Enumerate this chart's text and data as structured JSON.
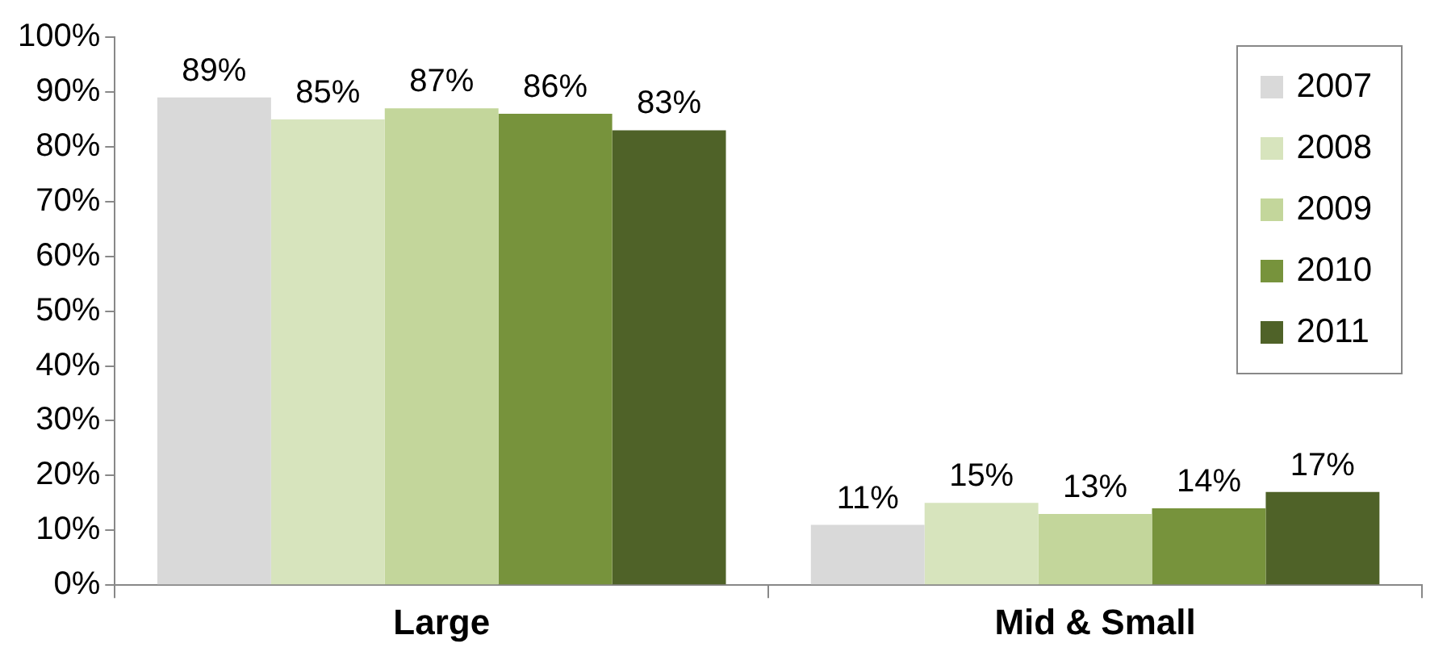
{
  "chart_data": {
    "type": "bar",
    "categories": [
      "Large",
      "Mid & Small"
    ],
    "series": [
      {
        "name": "2007",
        "color": "#d9d9d9",
        "values": [
          89,
          11
        ],
        "value_labels": [
          "89%",
          "11%"
        ]
      },
      {
        "name": "2008",
        "color": "#d7e4bd",
        "values": [
          85,
          15
        ],
        "value_labels": [
          "85%",
          "15%"
        ]
      },
      {
        "name": "2009",
        "color": "#c3d69b",
        "values": [
          87,
          13
        ],
        "value_labels": [
          "87%",
          "13%"
        ]
      },
      {
        "name": "2010",
        "color": "#77933c",
        "values": [
          86,
          14
        ],
        "value_labels": [
          "86%",
          "14%"
        ]
      },
      {
        "name": "2011",
        "color": "#4f6228",
        "values": [
          83,
          17
        ],
        "value_labels": [
          "83%",
          "17%"
        ]
      }
    ],
    "ylim": [
      0,
      100
    ],
    "yticks": [
      {
        "value": 0,
        "label": "0%"
      },
      {
        "value": 10,
        "label": "10%"
      },
      {
        "value": 20,
        "label": "20%"
      },
      {
        "value": 30,
        "label": "30%"
      },
      {
        "value": 40,
        "label": "40%"
      },
      {
        "value": 50,
        "label": "50%"
      },
      {
        "value": 60,
        "label": "60%"
      },
      {
        "value": 70,
        "label": "70%"
      },
      {
        "value": 80,
        "label": "80%"
      },
      {
        "value": 90,
        "label": "90%"
      },
      {
        "value": 100,
        "label": "100%"
      }
    ],
    "grid": false,
    "legend": "top right"
  }
}
